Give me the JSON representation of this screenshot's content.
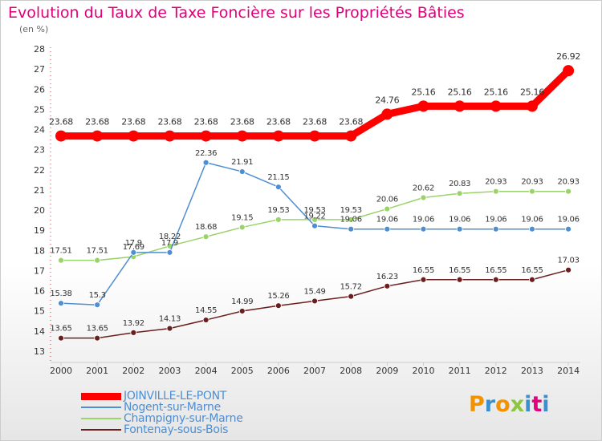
{
  "header": {
    "title": "Evolution du Taux de Taxe Foncière sur les Propriétés Bâties",
    "unit": "(en %)"
  },
  "brand": {
    "letters": [
      "P",
      "r",
      "o",
      "x",
      "i",
      "t",
      "i"
    ],
    "colors": [
      "#f39200",
      "#3a8fd0",
      "#f39200",
      "#8cc63f",
      "#3a8fd0",
      "#e5007e",
      "#3a8fd0"
    ]
  },
  "chart_data": {
    "type": "line",
    "x": [
      "2000",
      "2001",
      "2002",
      "2003",
      "2004",
      "2005",
      "2006",
      "2007",
      "2008",
      "2009",
      "2010",
      "2011",
      "2012",
      "2013",
      "2014"
    ],
    "ylim": [
      13,
      28
    ],
    "yticks": [
      "13",
      "14",
      "15",
      "16",
      "17",
      "18",
      "19",
      "20",
      "21",
      "22",
      "23",
      "24",
      "25",
      "26",
      "27",
      "28"
    ],
    "grid": false,
    "legend_position": "bottom-left",
    "series": [
      {
        "name": "JOINVILLE-LE-PONT",
        "color": "#ff0000",
        "values": [
          23.68,
          23.68,
          23.68,
          23.68,
          23.68,
          23.68,
          23.68,
          23.68,
          23.68,
          24.76,
          25.16,
          25.16,
          25.16,
          25.16,
          26.92
        ],
        "labels": [
          "23.68",
          "23.68",
          "23.68",
          "23.68",
          "23.68",
          "23.68",
          "23.68",
          "23.68",
          "23.68",
          "24.76",
          "25.16",
          "25.16",
          "25.16",
          "25.16",
          "26.92"
        ]
      },
      {
        "name": "Nogent-sur-Marne",
        "color": "#4f8ed0",
        "values": [
          15.38,
          15.3,
          17.9,
          17.9,
          22.36,
          21.91,
          21.15,
          19.22,
          19.06,
          19.06,
          19.06,
          19.06,
          19.06,
          19.06,
          19.06
        ],
        "labels": [
          "15.38",
          "15.3",
          "17.9",
          "17.9",
          "22.36",
          "21.91",
          "21.15",
          "19.22",
          "19.06",
          "19.06",
          "19.06",
          "19.06",
          "19.06",
          "19.06",
          "19.06"
        ]
      },
      {
        "name": "Champigny-sur-Marne",
        "color": "#9ad36a",
        "values": [
          17.51,
          17.51,
          17.69,
          18.22,
          18.68,
          19.15,
          19.53,
          19.53,
          19.53,
          20.06,
          20.62,
          20.83,
          20.93,
          20.93,
          20.93
        ],
        "labels": [
          "17.51",
          "17.51",
          "17.69",
          "18.22",
          "18.68",
          "19.15",
          "19.53",
          "19.53",
          "19.53",
          "20.06",
          "20.62",
          "20.83",
          "20.93",
          "20.93",
          "20.93"
        ]
      },
      {
        "name": "Fontenay-sous-Bois",
        "color": "#6b1e1e",
        "values": [
          13.65,
          13.65,
          13.92,
          14.13,
          14.55,
          14.99,
          15.26,
          15.49,
          15.72,
          16.23,
          16.55,
          16.55,
          16.55,
          16.55,
          17.03
        ],
        "labels": [
          "13.65",
          "13.65",
          "13.92",
          "14.13",
          "14.55",
          "14.99",
          "15.26",
          "15.49",
          "15.72",
          "16.23",
          "16.55",
          "16.55",
          "16.55",
          "16.55",
          "17.03"
        ]
      }
    ]
  }
}
